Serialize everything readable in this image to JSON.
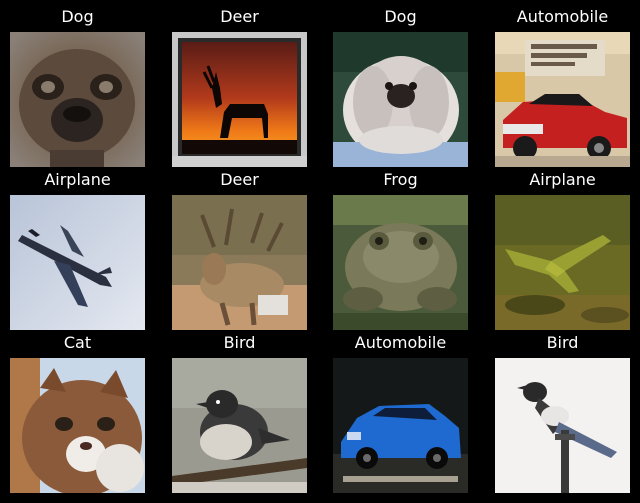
{
  "images": [
    {
      "label": "Dog"
    },
    {
      "label": "Deer"
    },
    {
      "label": "Dog"
    },
    {
      "label": "Automobile"
    },
    {
      "label": "Airplane"
    },
    {
      "label": "Deer"
    },
    {
      "label": "Frog"
    },
    {
      "label": "Airplane"
    },
    {
      "label": "Cat"
    },
    {
      "label": "Bird"
    },
    {
      "label": "Automobile"
    },
    {
      "label": "Bird"
    }
  ]
}
